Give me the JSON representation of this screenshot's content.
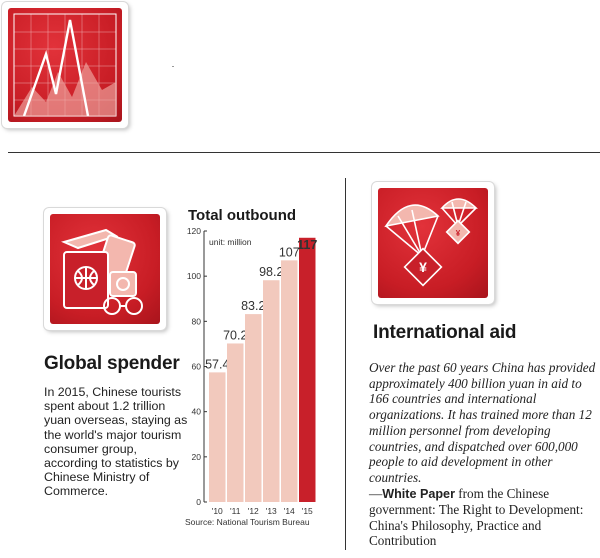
{
  "spender": {
    "title": "Global spender",
    "body": "In 2015, Chinese tourists spent about 1.2 trillion yuan overseas, staying as the world's major tourism consumer group, according to statistics by Chinese Ministry of Commerce."
  },
  "aid": {
    "title": "International aid",
    "body": "Over the past 60 years China has provided approximately 400 billion yuan in aid to 166 countries and international organizations. It has trained more than 12 million personnel from developing countries, and dispatched over 600,000 people to aid development in other countries.",
    "quote_dash": "—",
    "quote_bold": "White Paper",
    "quote_rest": " from the Chinese government: The Right to Development: China's Philosophy, Practice and Contribution"
  },
  "chart_data": {
    "type": "bar",
    "title": "Total outbound",
    "unit": "unit: million",
    "source": "Source: National Tourism Bureau",
    "categories": [
      "'10",
      "'11",
      "'12",
      "'13",
      "'14",
      "'15"
    ],
    "values": [
      57.4,
      70.2,
      83.2,
      98.2,
      107,
      117
    ],
    "value_labels": [
      "57.4",
      "70.2",
      "83.2",
      "98.2",
      "107",
      "117"
    ],
    "ylim": [
      0,
      120
    ],
    "yticks": [
      0,
      20,
      40,
      60,
      80,
      100,
      120
    ],
    "colors": {
      "bar": "#f2c9bd",
      "highlight": "#c8202a",
      "highlight_label": "#1a1a1a"
    }
  }
}
